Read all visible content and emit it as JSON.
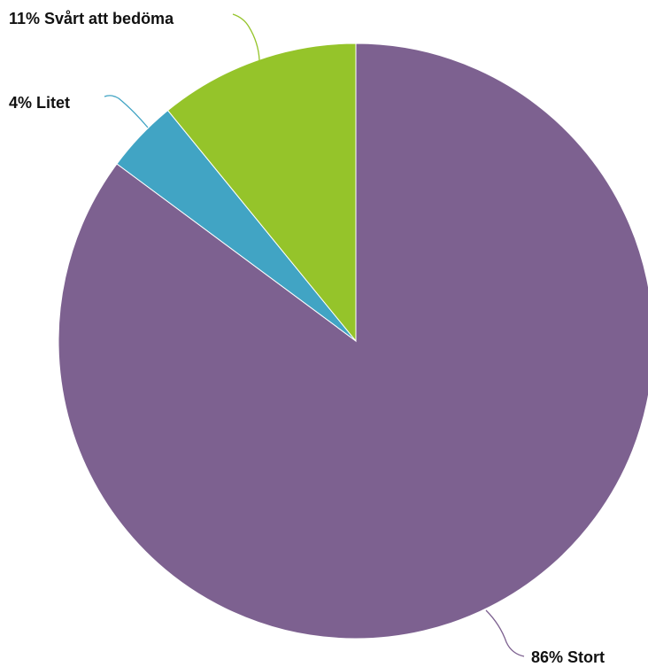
{
  "chart_data": {
    "type": "pie",
    "start_angle_deg": 0,
    "direction": "clockwise",
    "slices": [
      {
        "label": "Stort",
        "value": 86,
        "display": "86% Stort",
        "color": "#7d6190"
      },
      {
        "label": "Litet",
        "value": 4,
        "display": "4% Litet",
        "color": "#41a4c4"
      },
      {
        "label": "Svårt att bedöma",
        "value": 11,
        "display": "11% Svårt att bedöma",
        "color": "#95c42a"
      }
    ],
    "legend": "none",
    "data_labels": "outside with leader lines"
  }
}
